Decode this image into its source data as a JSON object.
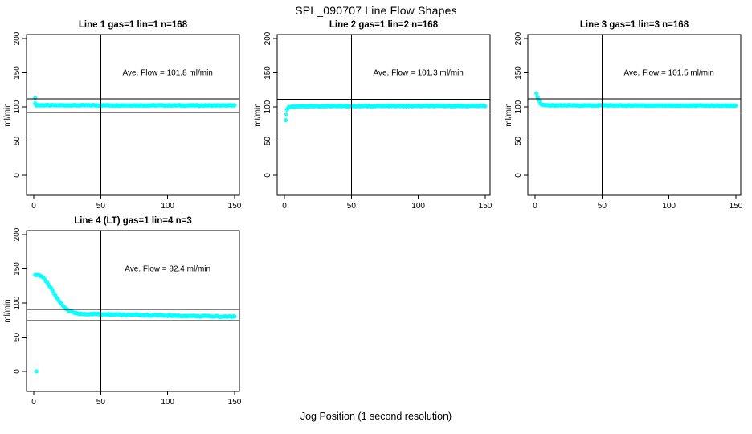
{
  "title": "SPL_090707  Line Flow Shapes",
  "xlabel": "Jog Position (1 second resolution)",
  "colors": {
    "marker": "#00FFFF",
    "axis": "#000000",
    "background": "#FFFFFF",
    "text": "#000000"
  },
  "chart_data": [
    {
      "type": "scatter",
      "name": "line-1",
      "title": "Line 1 gas=1 lin=1 n=168",
      "annotation": "Ave. Flow =  101.8  ml/min",
      "ave_flow_ml_min": 101.8,
      "n": 168,
      "xlim": [
        0,
        150
      ],
      "ylim": [
        0,
        200
      ],
      "xticks": [
        0,
        50,
        100,
        150
      ],
      "yticks": [
        0,
        50,
        100,
        150,
        200
      ],
      "ylabel": "ml/min",
      "vline_x": 50,
      "hlines": [
        111.98,
        91.62
      ],
      "grid": false,
      "profile": [
        [
          1,
          104.5
        ],
        [
          2,
          102.4
        ],
        [
          150,
          102
        ]
      ],
      "extra_points": [
        [
          1,
          113
        ]
      ],
      "noise": 0.5,
      "x_start": 1,
      "x_end": 150
    },
    {
      "type": "scatter",
      "name": "line-2",
      "title": "Line 2 gas=1 lin=2 n=168",
      "annotation": "Ave. Flow =  101.3  ml/min",
      "ave_flow_ml_min": 101.3,
      "n": 168,
      "xlim": [
        0,
        150
      ],
      "ylim": [
        0,
        200
      ],
      "xticks": [
        0,
        50,
        100,
        150
      ],
      "yticks": [
        0,
        50,
        100,
        150,
        200
      ],
      "ylabel": "ml/min",
      "vline_x": 50,
      "hlines": [
        111.43,
        91.17
      ],
      "grid": false,
      "profile": [
        [
          2,
          96.5
        ],
        [
          3,
          99
        ],
        [
          5,
          100.4
        ],
        [
          10,
          100.9
        ],
        [
          150,
          101.4
        ]
      ],
      "extra_points": [
        [
          1,
          80.5
        ],
        [
          1,
          89.5
        ]
      ],
      "noise": 0.5,
      "x_start": 2,
      "x_end": 150
    },
    {
      "type": "scatter",
      "name": "line-3",
      "title": "Line 3 gas=1 lin=3 n=168",
      "annotation": "Ave. Flow =  101.5  ml/min",
      "ave_flow_ml_min": 101.5,
      "n": 168,
      "xlim": [
        0,
        150
      ],
      "ylim": [
        0,
        200
      ],
      "xticks": [
        0,
        50,
        100,
        150
      ],
      "yticks": [
        0,
        50,
        100,
        150,
        200
      ],
      "ylabel": "ml/min",
      "vline_x": 50,
      "hlines": [
        111.65,
        91.35
      ],
      "grid": false,
      "profile": [
        [
          1,
          120
        ],
        [
          2,
          114.5
        ],
        [
          3,
          108.5
        ],
        [
          4,
          104.8
        ],
        [
          5,
          103.2
        ],
        [
          7,
          102.2
        ],
        [
          150,
          101.8
        ]
      ],
      "extra_points": [],
      "noise": 0.5,
      "x_start": 1,
      "x_end": 150
    },
    {
      "type": "scatter",
      "name": "line-4-LT",
      "title": "Line 4 (LT) gas=1 lin=4 n=3",
      "annotation": "Ave. Flow =  82.4  ml/min",
      "ave_flow_ml_min": 82.4,
      "n": 3,
      "xlim": [
        0,
        150
      ],
      "ylim": [
        0,
        200
      ],
      "xticks": [
        0,
        50,
        100,
        150
      ],
      "yticks": [
        0,
        50,
        100,
        150,
        200
      ],
      "ylabel": "ml/min",
      "vline_x": 50,
      "hlines": [
        90.64,
        74.16
      ],
      "grid": false,
      "profile": [
        [
          1,
          141.5
        ],
        [
          3,
          141.5
        ],
        [
          5,
          140
        ],
        [
          7,
          137
        ],
        [
          9,
          132.5
        ],
        [
          11,
          127
        ],
        [
          13,
          121
        ],
        [
          15,
          114.5
        ],
        [
          17,
          108.5
        ],
        [
          19,
          103
        ],
        [
          21,
          98
        ],
        [
          23,
          93.5
        ],
        [
          25,
          90
        ],
        [
          27,
          87.5
        ],
        [
          29,
          86
        ],
        [
          31,
          85
        ],
        [
          34,
          84.2
        ],
        [
          40,
          83.8
        ],
        [
          60,
          83
        ],
        [
          80,
          82.2
        ],
        [
          100,
          81.4
        ],
        [
          125,
          80.6
        ],
        [
          150,
          80
        ]
      ],
      "extra_points": [
        [
          2,
          0
        ]
      ],
      "noise": 0.8,
      "x_start": 1,
      "x_end": 150
    }
  ]
}
